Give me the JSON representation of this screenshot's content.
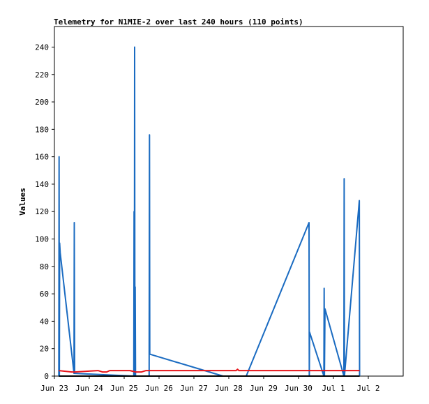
{
  "chart_data": {
    "type": "line",
    "title": "Telemetry for N1MIE-2 over last 240 hours (110 points)",
    "ylabel": "Values",
    "xlabel": "",
    "xlim": [
      0,
      240
    ],
    "ylim": [
      0,
      255
    ],
    "grid": false,
    "legend": "none",
    "y_ticks": [
      0,
      20,
      40,
      60,
      80,
      100,
      120,
      140,
      160,
      180,
      200,
      220,
      240
    ],
    "x_ticks": [
      {
        "label": "Jun 23",
        "x": 0
      },
      {
        "label": "Jun 24",
        "x": 24
      },
      {
        "label": "Jun 25",
        "x": 48
      },
      {
        "label": "Jun 26",
        "x": 72
      },
      {
        "label": "Jun 27",
        "x": 96
      },
      {
        "label": "Jun 28",
        "x": 120
      },
      {
        "label": "Jun 29",
        "x": 144
      },
      {
        "label": "Jun 30",
        "x": 168
      },
      {
        "label": "Jul 1",
        "x": 192
      },
      {
        "label": "Jul 2",
        "x": 216
      }
    ],
    "series": [
      {
        "color": "#1a6bc1",
        "points": [
          [
            3.0,
            0
          ],
          [
            3.2,
            160
          ],
          [
            3.4,
            0
          ],
          [
            3.6,
            97
          ],
          [
            4.0,
            90
          ],
          [
            13.5,
            2
          ],
          [
            13.7,
            112
          ],
          [
            13.9,
            2
          ],
          [
            54.6,
            0
          ],
          [
            54.8,
            120
          ],
          [
            55.0,
            0
          ],
          [
            55.2,
            240
          ],
          [
            55.4,
            0
          ],
          [
            55.6,
            65
          ],
          [
            55.8,
            0
          ],
          [
            65.2,
            0
          ],
          [
            65.4,
            176
          ],
          [
            65.6,
            16
          ],
          [
            116,
            0
          ],
          [
            132,
            0
          ],
          [
            175.2,
            112
          ],
          [
            175.4,
            0
          ],
          [
            175.6,
            32
          ],
          [
            185.4,
            0
          ],
          [
            185.6,
            64
          ],
          [
            185.8,
            0
          ],
          [
            186.2,
            49
          ],
          [
            199.2,
            0
          ],
          [
            199.4,
            144
          ],
          [
            199.6,
            0
          ],
          [
            209.8,
            128
          ],
          [
            210.0,
            0
          ]
        ]
      },
      {
        "color": "#e8141a",
        "points": [
          [
            3.0,
            4
          ],
          [
            12,
            3
          ],
          [
            14,
            3
          ],
          [
            30,
            4
          ],
          [
            33,
            3
          ],
          [
            36,
            3
          ],
          [
            38,
            4
          ],
          [
            52,
            4
          ],
          [
            56,
            3
          ],
          [
            60,
            3
          ],
          [
            63,
            4
          ],
          [
            100,
            4
          ],
          [
            120,
            4
          ],
          [
            125,
            4
          ],
          [
            126,
            5
          ],
          [
            127,
            4
          ],
          [
            150,
            4
          ],
          [
            175,
            4
          ],
          [
            185,
            4
          ],
          [
            200,
            4
          ],
          [
            210,
            4
          ]
        ]
      },
      {
        "color": "#000000",
        "points": [
          [
            3.0,
            0
          ],
          [
            210,
            0
          ]
        ]
      }
    ]
  }
}
